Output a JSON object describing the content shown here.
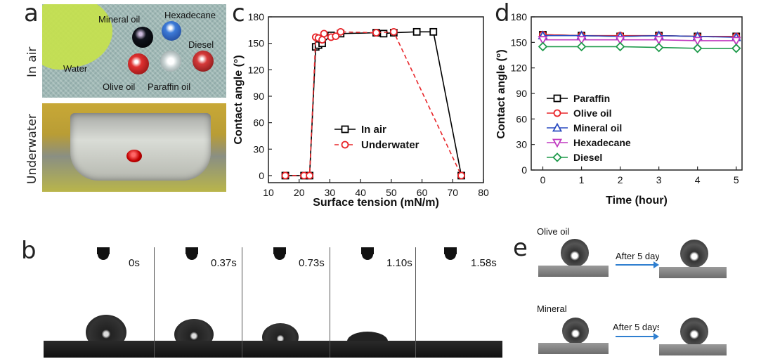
{
  "panel_labels": {
    "a": "a",
    "b": "b",
    "c": "c",
    "d": "d",
    "e": "e"
  },
  "panel_a": {
    "row_labels": [
      "In air",
      "Underwater"
    ],
    "drop_labels": [
      "Mineral oil",
      "Hexadecane",
      "Water",
      "Diesel",
      "Olive oil",
      "Paraffin oil"
    ]
  },
  "panel_b": {
    "times": [
      "0s",
      "0.37s",
      "0.73s",
      "1.10s",
      "1.58s"
    ]
  },
  "panel_e": {
    "labels": [
      "Olive oil",
      "Mineral"
    ],
    "arrow_text": "After 5 days"
  },
  "colors": {
    "in_air": "#000000",
    "underwater": "#e8262a",
    "paraffin": "#000000",
    "olive": "#e8262a",
    "mineral": "#2a4bc0",
    "hexadecane": "#c03ac0",
    "diesel": "#1e9a4a"
  },
  "chart_data": [
    {
      "type": "line",
      "xlabel": "Surface tension (mN/m)",
      "ylabel": "Contact angle (°)",
      "xlim": [
        10,
        80
      ],
      "ylim": [
        -8,
        180
      ],
      "xticks": [
        10,
        20,
        30,
        40,
        50,
        60,
        70,
        80
      ],
      "yticks": [
        0,
        30,
        60,
        90,
        120,
        150,
        180
      ],
      "legend_position": "center-right",
      "series": [
        {
          "name": "In air",
          "x": [
            15.5,
            21.6,
            23.4,
            25.4,
            26.3,
            27.5,
            30.4,
            33.5,
            45.1,
            47.5,
            50.8,
            58.3,
            63.7,
            72.8
          ],
          "y": [
            0,
            0,
            0,
            146,
            148,
            150,
            159,
            161,
            162,
            161,
            162,
            163,
            163,
            0
          ]
        },
        {
          "name": "Underwater",
          "x": [
            15.5,
            21.6,
            23.4,
            25.4,
            26.3,
            27.5,
            28.1,
            30.4,
            31.9,
            33.5,
            45.1,
            50.8,
            72.8
          ],
          "y": [
            0,
            0,
            0,
            157,
            156,
            154,
            161,
            157,
            158,
            163,
            162,
            163,
            0
          ]
        }
      ]
    },
    {
      "type": "line",
      "xlabel": "Time (hour)",
      "ylabel": "Contact angle (°)",
      "xlim": [
        -0.3,
        5.15
      ],
      "ylim": [
        0,
        180
      ],
      "xticks": [
        0,
        1,
        2,
        3,
        4,
        5
      ],
      "yticks": [
        0,
        30,
        60,
        90,
        120,
        150,
        180
      ],
      "legend_position": "bottom-left",
      "series": [
        {
          "name": "Paraffin",
          "x": [
            0,
            1,
            2,
            3,
            4,
            5
          ],
          "y": [
            159,
            158,
            157,
            158,
            157,
            157
          ]
        },
        {
          "name": "Olive oil",
          "x": [
            0,
            1,
            2,
            3,
            4,
            5
          ],
          "y": [
            159,
            158,
            158,
            158,
            157,
            157
          ]
        },
        {
          "name": "Mineral oil",
          "x": [
            0,
            1,
            2,
            3,
            4,
            5
          ],
          "y": [
            158,
            158,
            157,
            158,
            157,
            156
          ]
        },
        {
          "name": "Hexadecane",
          "x": [
            0,
            1,
            2,
            3,
            4,
            5
          ],
          "y": [
            153,
            153,
            153,
            153,
            152,
            152
          ]
        },
        {
          "name": "Diesel",
          "x": [
            0,
            1,
            2,
            3,
            4,
            5
          ],
          "y": [
            145,
            145,
            145,
            144,
            143,
            143
          ]
        }
      ]
    }
  ]
}
